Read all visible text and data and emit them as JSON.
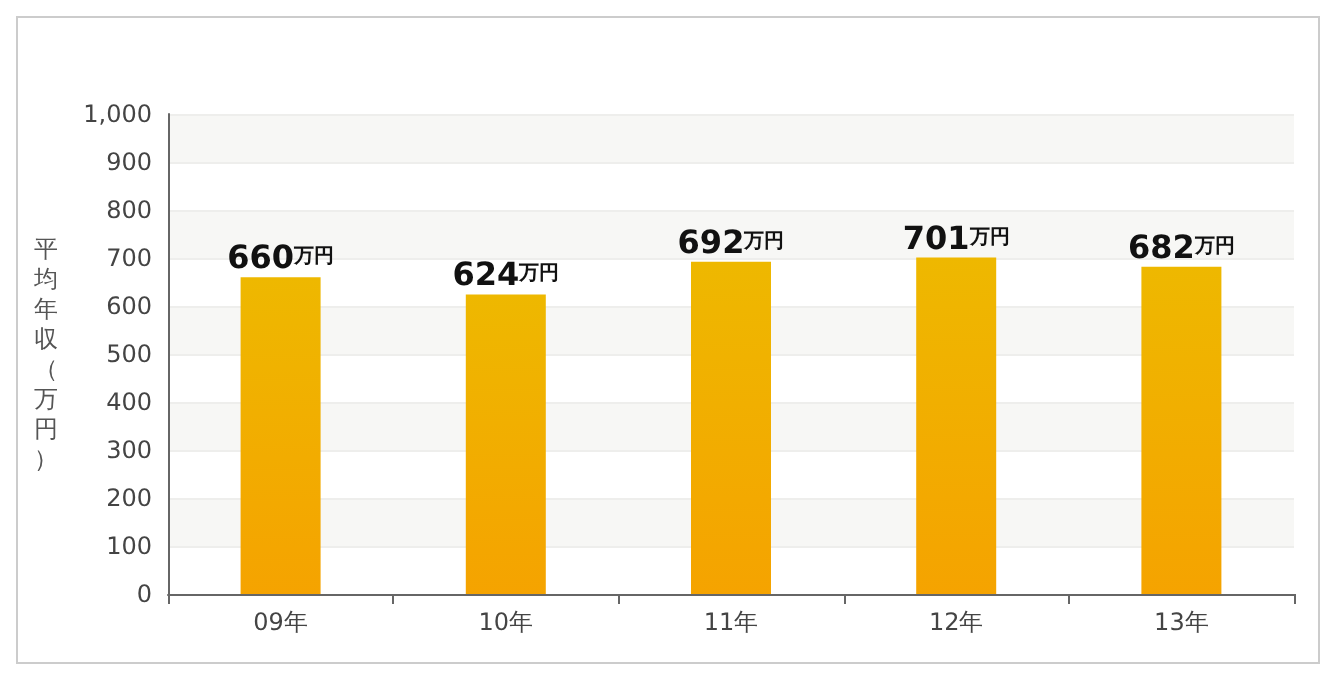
{
  "chart_data": {
    "type": "bar",
    "ylabel": "平均年収（万円）",
    "categories": [
      "09年",
      "10年",
      "11年",
      "12年",
      "13年"
    ],
    "values": [
      660,
      624,
      692,
      701,
      682
    ],
    "value_labels": [
      "660万円",
      "624万円",
      "692万円",
      "701万円",
      "682万円"
    ],
    "color": "#f5a300",
    "ylim": [
      0,
      1000
    ],
    "yticks": [
      0,
      100,
      200,
      300,
      400,
      500,
      600,
      700,
      800,
      900,
      {
        "value": 1000,
        "label": "1,000"
      }
    ],
    "grid": "y"
  }
}
